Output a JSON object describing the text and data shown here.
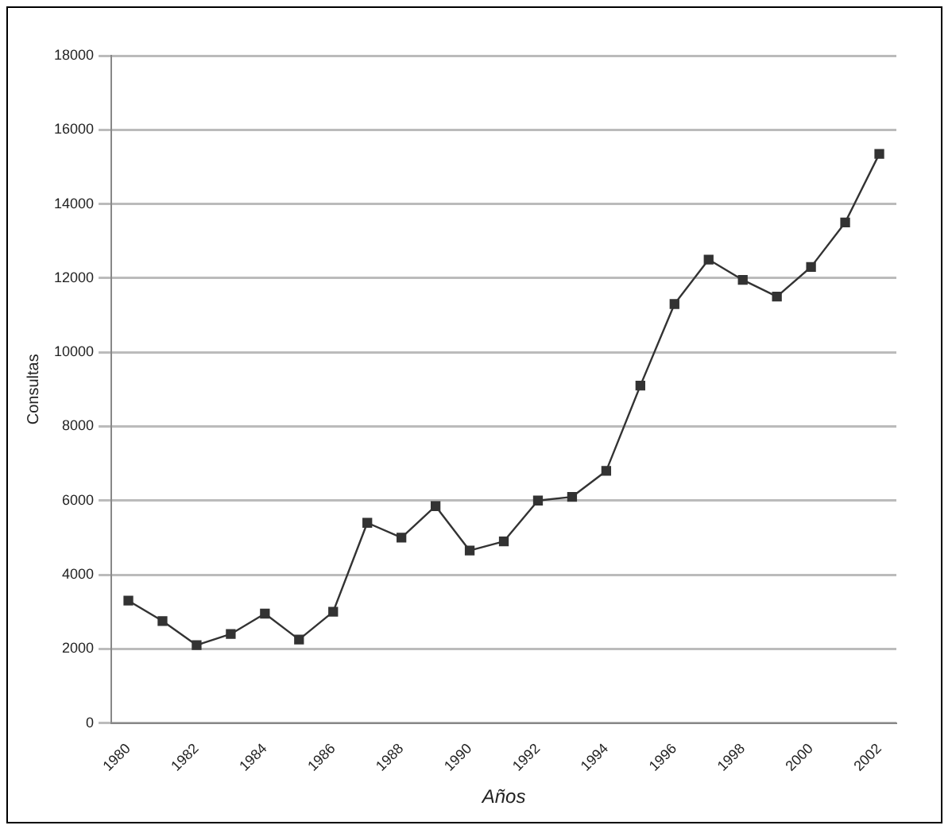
{
  "chart_data": {
    "type": "line",
    "xlabel": "Años",
    "ylabel": "Consultas",
    "categories": [
      "1980",
      null,
      "1982",
      null,
      "1984",
      null,
      "1986",
      null,
      "1988",
      null,
      "1990",
      null,
      "1992",
      null,
      "1994",
      null,
      "1996",
      null,
      "1998",
      null,
      "2000",
      null,
      "2002"
    ],
    "series": [
      {
        "color": "#333333",
        "values": [
          3300,
          2750,
          2100,
          2400,
          2950,
          2250,
          3000,
          5400,
          5000,
          5850,
          4650,
          4900,
          6000,
          6100,
          6800,
          9100,
          11300,
          12500,
          11950,
          11500,
          12300,
          13500,
          15350
        ]
      }
    ],
    "ylim": [
      0,
      18000
    ],
    "yticks": [
      0,
      2000,
      4000,
      6000,
      8000,
      10000,
      12000,
      14000,
      16000,
      18000
    ],
    "grid": "y",
    "legend": false,
    "marker": "square",
    "line_style": "solid"
  }
}
